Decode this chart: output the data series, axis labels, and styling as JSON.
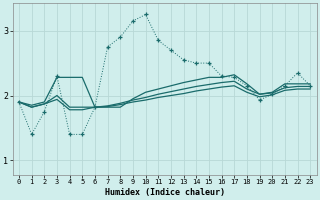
{
  "xlabel": "Humidex (Indice chaleur)",
  "bg_color": "#d0eeec",
  "grid_color": "#b8d8d6",
  "line_color": "#1a6b6b",
  "xlim": [
    -0.5,
    23.5
  ],
  "ylim": [
    0.78,
    3.42
  ],
  "yticks": [
    1,
    2,
    3
  ],
  "xticks": [
    0,
    1,
    2,
    3,
    4,
    5,
    6,
    7,
    8,
    9,
    10,
    11,
    12,
    13,
    14,
    15,
    16,
    17,
    18,
    19,
    20,
    21,
    22,
    23
  ],
  "dotted_x": [
    0,
    1,
    2,
    3,
    4,
    5,
    6,
    7,
    8,
    9,
    10,
    11,
    12,
    13,
    14,
    15,
    16,
    17,
    18,
    19,
    20,
    21,
    22,
    23
  ],
  "dotted_y": [
    1.9,
    1.4,
    1.75,
    2.3,
    1.4,
    1.4,
    1.82,
    2.75,
    2.9,
    3.15,
    3.25,
    2.85,
    2.7,
    2.55,
    2.5,
    2.5,
    2.3,
    2.28,
    2.15,
    1.93,
    2.02,
    2.15,
    2.35,
    2.15
  ],
  "solid1_x": [
    0,
    1,
    2,
    3,
    4,
    5,
    6,
    7,
    8,
    9,
    10,
    11,
    12,
    13,
    14,
    15,
    16,
    17,
    18,
    19,
    20,
    21,
    22,
    23
  ],
  "solid1_y": [
    1.9,
    1.85,
    1.9,
    2.28,
    2.28,
    2.28,
    1.82,
    1.82,
    1.82,
    1.95,
    2.05,
    2.1,
    2.15,
    2.2,
    2.24,
    2.28,
    2.28,
    2.32,
    2.18,
    2.02,
    2.05,
    2.18,
    2.18,
    2.18
  ],
  "solid2_x": [
    0,
    1,
    2,
    3,
    4,
    5,
    6,
    7,
    8,
    9,
    10,
    11,
    12,
    13,
    14,
    15,
    16,
    17,
    18,
    19,
    20,
    21,
    22,
    23
  ],
  "solid2_y": [
    1.9,
    1.82,
    1.87,
    2.0,
    1.82,
    1.82,
    1.82,
    1.84,
    1.88,
    1.93,
    1.97,
    2.02,
    2.06,
    2.1,
    2.14,
    2.17,
    2.2,
    2.22,
    2.1,
    2.02,
    2.04,
    2.12,
    2.14,
    2.14
  ],
  "solid3_x": [
    0,
    1,
    2,
    3,
    4,
    5,
    6,
    7,
    8,
    9,
    10,
    11,
    12,
    13,
    14,
    15,
    16,
    17,
    18,
    19,
    20,
    21,
    22,
    23
  ],
  "solid3_y": [
    1.9,
    1.82,
    1.87,
    1.94,
    1.78,
    1.78,
    1.82,
    1.83,
    1.86,
    1.9,
    1.93,
    1.97,
    2.0,
    2.03,
    2.07,
    2.1,
    2.13,
    2.15,
    2.05,
    1.98,
    2.01,
    2.08,
    2.1,
    2.1
  ]
}
